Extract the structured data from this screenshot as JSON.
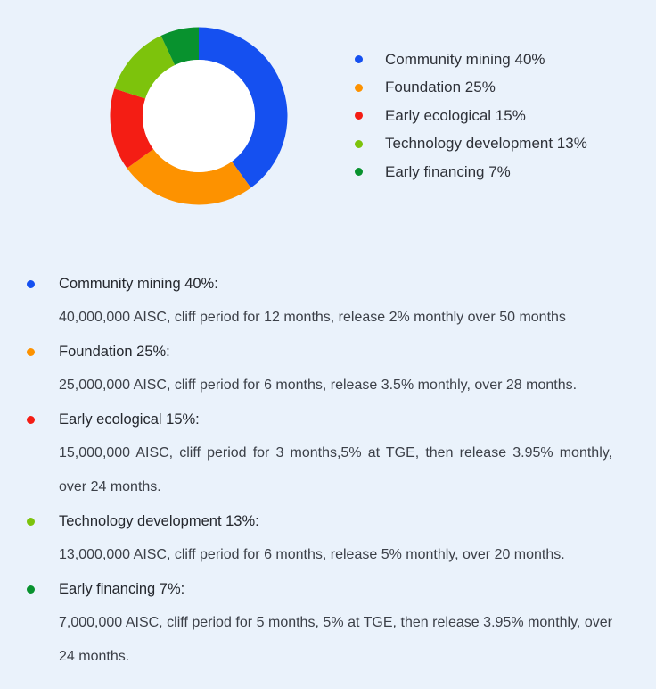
{
  "chart_data": {
    "type": "pie",
    "subtype": "donut",
    "title": "",
    "categories": [
      "Community mining",
      "Foundation",
      "Early ecological",
      "Technology development",
      "Early financing"
    ],
    "values": [
      40,
      25,
      15,
      13,
      7
    ],
    "colors": [
      "#1550f0",
      "#fd9200",
      "#f41d14",
      "#7dc30c",
      "#08922e"
    ],
    "legend_position": "right",
    "start_angle": "top, clockwise"
  },
  "legend": {
    "items": [
      {
        "label": "Community mining 40%",
        "color": "#1550f0"
      },
      {
        "label": "Foundation 25%",
        "color": "#fd9200"
      },
      {
        "label": "Early ecological 15%",
        "color": "#f41d14"
      },
      {
        "label": "Technology development 13%",
        "color": "#7dc30c"
      },
      {
        "label": "Early financing 7%",
        "color": "#08922e"
      }
    ]
  },
  "details": {
    "items": [
      {
        "title": "Community mining 40%:",
        "color": "#1550f0",
        "text": "40,000,000 AISC, cliff period for 12 months, release 2% monthly over 50 months"
      },
      {
        "title": "Foundation 25%:",
        "color": "#fd9200",
        "text": "25,000,000 AISC, cliff period for 6 months, release 3.5% monthly, over 28 months."
      },
      {
        "title": "Early ecological 15%:",
        "color": "#f41d14",
        "text": "15,000,000 AISC, cliff period for 3 months,5% at TGE, then release 3.95% monthly, over 24 months."
      },
      {
        "title": "Technology development 13%:",
        "color": "#7dc30c",
        "text": "13,000,000 AISC, cliff period for 6 months, release 5% monthly, over 20 months."
      },
      {
        "title": "Early financing 7%:",
        "color": "#08922e",
        "text": "7,000,000 AISC, cliff period for 5 months, 5% at TGE, then release 3.95% monthly, over 24 months."
      }
    ]
  }
}
